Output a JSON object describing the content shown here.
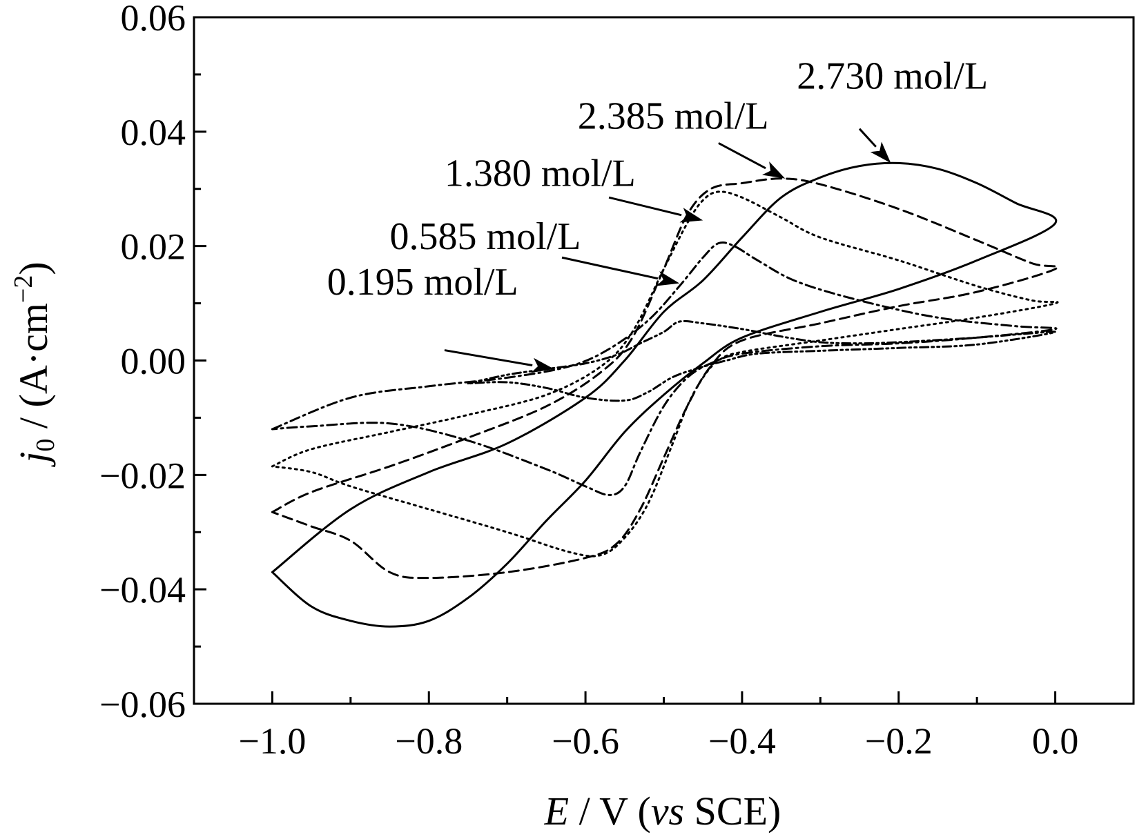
{
  "chart_data": {
    "type": "line",
    "title": "",
    "xlabel": {
      "italic": "E",
      "rest": " / V (",
      "vs": "vs",
      "end": " SCE)"
    },
    "ylabel": {
      "j": "j",
      "sub": "0",
      "rest": " / (A·cm",
      "sup": "−2",
      "end": ")"
    },
    "xlim": [
      -1.1,
      0.1
    ],
    "ylim": [
      -0.06,
      0.06
    ],
    "x_ticks": [
      -1.0,
      -0.8,
      -0.6,
      -0.4,
      -0.2,
      0.0
    ],
    "x_tick_labels": [
      "−1.0",
      "−0.8",
      "−0.6",
      "−0.4",
      "−0.2",
      "0.0"
    ],
    "y_ticks": [
      -0.06,
      -0.04,
      -0.02,
      0.0,
      0.02,
      0.04,
      0.06
    ],
    "y_tick_labels": [
      "−0.06",
      "−0.04",
      "−0.02",
      "0.00",
      "0.02",
      "0.04",
      "0.06"
    ],
    "grid": false,
    "legend": "annotations with arrows",
    "series": [
      {
        "name": "0.195 mol/L",
        "style": "dashdotdot",
        "points": [
          [
            -0.75,
            -0.004
          ],
          [
            -0.7,
            -0.0025
          ],
          [
            -0.65,
            -0.0015
          ],
          [
            -0.6,
            -0.0005
          ],
          [
            -0.56,
            0.001
          ],
          [
            -0.53,
            0.003
          ],
          [
            -0.5,
            0.005
          ],
          [
            -0.48,
            0.0068
          ],
          [
            -0.45,
            0.0065
          ],
          [
            -0.4,
            0.0055
          ],
          [
            -0.35,
            0.0042
          ],
          [
            -0.3,
            0.0032
          ],
          [
            -0.25,
            0.003
          ],
          [
            -0.2,
            0.0032
          ],
          [
            -0.1,
            0.004
          ],
          [
            0.0,
            0.005
          ],
          [
            -0.1,
            0.0028
          ],
          [
            -0.2,
            0.0022
          ],
          [
            -0.3,
            0.0017
          ],
          [
            -0.38,
            0.0012
          ],
          [
            -0.42,
            0.0
          ],
          [
            -0.46,
            -0.0015
          ],
          [
            -0.49,
            -0.003
          ],
          [
            -0.52,
            -0.0055
          ],
          [
            -0.55,
            -0.007
          ],
          [
            -0.6,
            -0.0065
          ],
          [
            -0.65,
            -0.0048
          ],
          [
            -0.7,
            -0.0038
          ],
          [
            -0.75,
            -0.004
          ]
        ]
      },
      {
        "name": "0.585 mol/L",
        "style": "dashdot",
        "points": [
          [
            -1.0,
            -0.012
          ],
          [
            -0.9,
            -0.0065
          ],
          [
            -0.8,
            -0.0045
          ],
          [
            -0.7,
            -0.003
          ],
          [
            -0.62,
            -0.001
          ],
          [
            -0.57,
            0.002
          ],
          [
            -0.52,
            0.007
          ],
          [
            -0.48,
            0.013
          ],
          [
            -0.45,
            0.018
          ],
          [
            -0.43,
            0.0205
          ],
          [
            -0.41,
            0.02
          ],
          [
            -0.38,
            0.0175
          ],
          [
            -0.33,
            0.0138
          ],
          [
            -0.25,
            0.0105
          ],
          [
            -0.15,
            0.0075
          ],
          [
            -0.05,
            0.006
          ],
          [
            0.0,
            0.0055
          ],
          [
            -0.1,
            0.004
          ],
          [
            -0.2,
            0.003
          ],
          [
            -0.3,
            0.0025
          ],
          [
            -0.4,
            0.0012
          ],
          [
            -0.44,
            -0.0005
          ],
          [
            -0.47,
            -0.003
          ],
          [
            -0.5,
            -0.008
          ],
          [
            -0.53,
            -0.016
          ],
          [
            -0.55,
            -0.022
          ],
          [
            -0.57,
            -0.0235
          ],
          [
            -0.6,
            -0.022
          ],
          [
            -0.65,
            -0.019
          ],
          [
            -0.75,
            -0.014
          ],
          [
            -0.85,
            -0.011
          ],
          [
            -0.95,
            -0.0115
          ],
          [
            -1.0,
            -0.012
          ]
        ]
      },
      {
        "name": "1.380 mol/L",
        "style": "dotted",
        "points": [
          [
            -1.0,
            -0.0185
          ],
          [
            -0.95,
            -0.0155
          ],
          [
            -0.85,
            -0.0125
          ],
          [
            -0.75,
            -0.0095
          ],
          [
            -0.65,
            -0.006
          ],
          [
            -0.58,
            -0.001
          ],
          [
            -0.54,
            0.005
          ],
          [
            -0.5,
            0.016
          ],
          [
            -0.47,
            0.024
          ],
          [
            -0.45,
            0.028
          ],
          [
            -0.43,
            0.0295
          ],
          [
            -0.4,
            0.0285
          ],
          [
            -0.35,
            0.025
          ],
          [
            -0.3,
            0.0215
          ],
          [
            -0.2,
            0.0175
          ],
          [
            -0.1,
            0.013
          ],
          [
            -0.03,
            0.0105
          ],
          [
            0.0,
            0.01
          ],
          [
            -0.1,
            0.0075
          ],
          [
            -0.2,
            0.0055
          ],
          [
            -0.3,
            0.0035
          ],
          [
            -0.4,
            0.0015
          ],
          [
            -0.43,
            0.0
          ],
          [
            -0.45,
            -0.003
          ],
          [
            -0.47,
            -0.008
          ],
          [
            -0.49,
            -0.015
          ],
          [
            -0.52,
            -0.025
          ],
          [
            -0.55,
            -0.031
          ],
          [
            -0.58,
            -0.034
          ],
          [
            -0.62,
            -0.0335
          ],
          [
            -0.7,
            -0.03
          ],
          [
            -0.8,
            -0.026
          ],
          [
            -0.9,
            -0.022
          ],
          [
            -0.95,
            -0.0195
          ],
          [
            -1.0,
            -0.0185
          ]
        ]
      },
      {
        "name": "2.385 mol/L",
        "style": "dashed",
        "points": [
          [
            -1.0,
            -0.0265
          ],
          [
            -0.95,
            -0.023
          ],
          [
            -0.85,
            -0.0185
          ],
          [
            -0.75,
            -0.0135
          ],
          [
            -0.65,
            -0.008
          ],
          [
            -0.58,
            -0.002
          ],
          [
            -0.54,
            0.004
          ],
          [
            -0.5,
            0.016
          ],
          [
            -0.47,
            0.0255
          ],
          [
            -0.44,
            0.03
          ],
          [
            -0.4,
            0.031
          ],
          [
            -0.35,
            0.0318
          ],
          [
            -0.3,
            0.0308
          ],
          [
            -0.2,
            0.0265
          ],
          [
            -0.1,
            0.021
          ],
          [
            -0.03,
            0.017
          ],
          [
            0.0,
            0.016
          ],
          [
            -0.1,
            0.012
          ],
          [
            -0.2,
            0.0095
          ],
          [
            -0.3,
            0.0065
          ],
          [
            -0.4,
            0.0035
          ],
          [
            -0.44,
            -0.001
          ],
          [
            -0.47,
            -0.008
          ],
          [
            -0.5,
            -0.017
          ],
          [
            -0.53,
            -0.026
          ],
          [
            -0.56,
            -0.032
          ],
          [
            -0.6,
            -0.0345
          ],
          [
            -0.7,
            -0.037
          ],
          [
            -0.8,
            -0.038
          ],
          [
            -0.85,
            -0.037
          ],
          [
            -0.9,
            -0.0315
          ],
          [
            -0.95,
            -0.029
          ],
          [
            -1.0,
            -0.0265
          ]
        ]
      },
      {
        "name": "2.730 mol/L",
        "style": "solid",
        "points": [
          [
            -1.0,
            -0.037
          ],
          [
            -0.9,
            -0.026
          ],
          [
            -0.8,
            -0.0195
          ],
          [
            -0.7,
            -0.0145
          ],
          [
            -0.6,
            -0.0065
          ],
          [
            -0.55,
            0.0
          ],
          [
            -0.5,
            0.0085
          ],
          [
            -0.45,
            0.014
          ],
          [
            -0.4,
            0.0215
          ],
          [
            -0.35,
            0.0285
          ],
          [
            -0.3,
            0.032
          ],
          [
            -0.25,
            0.034
          ],
          [
            -0.2,
            0.0345
          ],
          [
            -0.15,
            0.0335
          ],
          [
            -0.1,
            0.031
          ],
          [
            -0.05,
            0.0275
          ],
          [
            0.0,
            0.024
          ],
          [
            -0.1,
            0.0175
          ],
          [
            -0.2,
            0.0125
          ],
          [
            -0.3,
            0.0085
          ],
          [
            -0.4,
            0.004
          ],
          [
            -0.45,
            -0.0005
          ],
          [
            -0.5,
            -0.006
          ],
          [
            -0.55,
            -0.0125
          ],
          [
            -0.6,
            -0.021
          ],
          [
            -0.65,
            -0.028
          ],
          [
            -0.7,
            -0.0355
          ],
          [
            -0.75,
            -0.0415
          ],
          [
            -0.8,
            -0.0455
          ],
          [
            -0.85,
            -0.0465
          ],
          [
            -0.9,
            -0.0455
          ],
          [
            -0.95,
            -0.043
          ],
          [
            -1.0,
            -0.037
          ]
        ]
      }
    ],
    "annotations": [
      {
        "text": "0.195 mol/L",
        "label_at": [
          -0.93,
          0.0115
        ],
        "arrow_from": [
          -0.78,
          0.0018
        ],
        "arrow_to": [
          -0.64,
          -0.0015
        ]
      },
      {
        "text": "0.585 mol/L",
        "label_at": [
          -0.85,
          0.0195
        ],
        "arrow_from": [
          -0.63,
          0.018
        ],
        "arrow_to": [
          -0.48,
          0.0135
        ]
      },
      {
        "text": "1.380 mol/L",
        "label_at": [
          -0.78,
          0.0305
        ],
        "arrow_from": [
          -0.57,
          0.0285
        ],
        "arrow_to": [
          -0.45,
          0.0245
        ]
      },
      {
        "text": "2.385 mol/L",
        "label_at": [
          -0.61,
          0.0405
        ],
        "arrow_from": [
          -0.43,
          0.038
        ],
        "arrow_to": [
          -0.345,
          0.0318
        ]
      },
      {
        "text": "2.730 mol/L",
        "label_at": [
          -0.33,
          0.0475
        ],
        "arrow_from": [
          -0.25,
          0.0405
        ],
        "arrow_to": [
          -0.21,
          0.0345
        ]
      }
    ]
  }
}
